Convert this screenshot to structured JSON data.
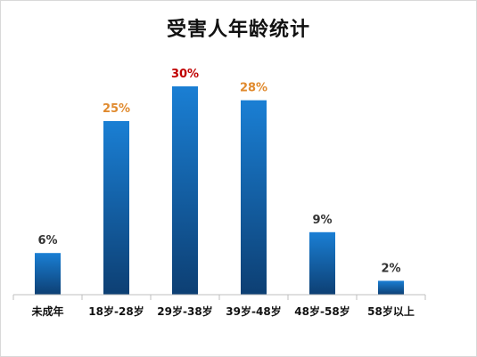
{
  "chart_data": {
    "type": "bar",
    "title": "受害人年龄统计",
    "categories": [
      "未成年",
      "18岁-28岁",
      "29岁-38岁",
      "39岁-48岁",
      "48岁-58岁",
      "58岁以上"
    ],
    "values": [
      6,
      25,
      30,
      28,
      9,
      2
    ],
    "data_labels": [
      "6%",
      "25%",
      "30%",
      "28%",
      "9%",
      "2%"
    ],
    "label_colors": [
      "#333333",
      "#e08a2e",
      "#c00000",
      "#e08a2e",
      "#333333",
      "#333333"
    ],
    "bar_color_top": "#1a7fd4",
    "bar_color_bottom": "#0d3f73",
    "xlabel": "",
    "ylabel": "",
    "ylim": [
      0,
      30
    ],
    "grid": false,
    "legend": "none"
  }
}
